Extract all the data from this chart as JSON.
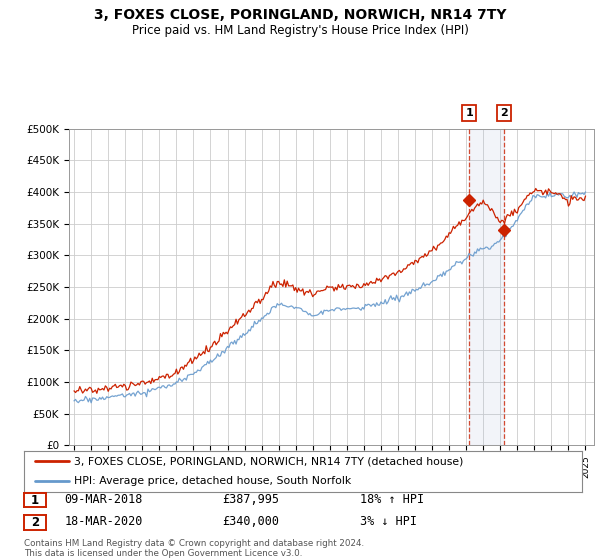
{
  "title": "3, FOXES CLOSE, PORINGLAND, NORWICH, NR14 7TY",
  "subtitle": "Price paid vs. HM Land Registry's House Price Index (HPI)",
  "ylim": [
    0,
    500000
  ],
  "xlim_start": 1994.7,
  "xlim_end": 2025.5,
  "background_color": "#ffffff",
  "grid_color": "#cccccc",
  "hpi_color": "#6699cc",
  "price_color": "#cc2200",
  "sale1_x": 2018.19,
  "sale1_y": 387995,
  "sale2_x": 2020.21,
  "sale2_y": 340000,
  "sale1_label": "09-MAR-2018",
  "sale1_price": "£387,995",
  "sale1_hpi": "18% ↑ HPI",
  "sale2_label": "18-MAR-2020",
  "sale2_price": "£340,000",
  "sale2_hpi": "3% ↓ HPI",
  "legend_line1": "3, FOXES CLOSE, PORINGLAND, NORWICH, NR14 7TY (detached house)",
  "legend_line2": "HPI: Average price, detached house, South Norfolk",
  "footer": "Contains HM Land Registry data © Crown copyright and database right 2024.\nThis data is licensed under the Open Government Licence v3.0."
}
